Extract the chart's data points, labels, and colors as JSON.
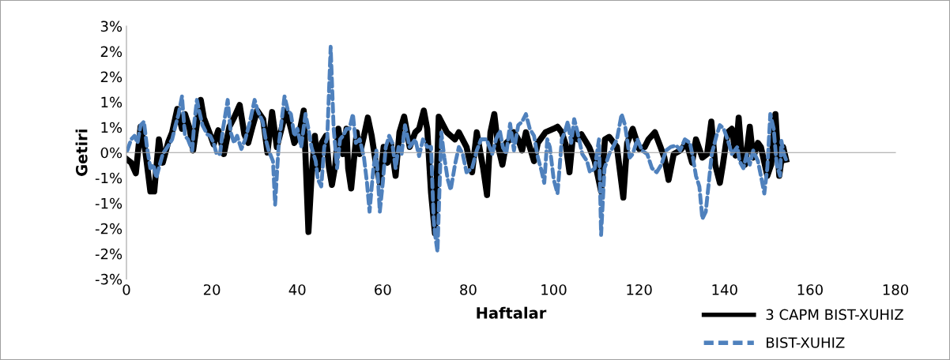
{
  "chart_data": {
    "type": "line",
    "xlabel": "Haftalar",
    "ylabel": "Getiri",
    "xlim": [
      0,
      180
    ],
    "xticks": [
      0,
      20,
      40,
      60,
      80,
      100,
      120,
      140,
      160,
      180
    ],
    "ylim": [
      -2.5,
      2.5
    ],
    "yticks": [
      {
        "value": -2.5,
        "label": "-3%"
      },
      {
        "value": -2,
        "label": "-2%"
      },
      {
        "value": -1.5,
        "label": "-2%"
      },
      {
        "value": -1,
        "label": "-1%"
      },
      {
        "value": -0.5,
        "label": "-1%"
      },
      {
        "value": 0,
        "label": "0%"
      },
      {
        "value": 0.5,
        "label": "1%"
      },
      {
        "value": 1,
        "label": "1%"
      },
      {
        "value": 1.5,
        "label": "2%"
      },
      {
        "value": 2,
        "label": "2%"
      },
      {
        "value": 2.5,
        "label": "3%"
      }
    ],
    "legend": "bottom right",
    "marker": "none",
    "series": [
      {
        "name": "3 CAPM BIST-XUHIZ",
        "color": "#000000",
        "line_style": "solid",
        "x": [
          0.2,
          1.1,
          2.2,
          3.3,
          4.4,
          5.6,
          6.5,
          7.6,
          8.5,
          9.8,
          10.7,
          11.9,
          13.0,
          13.7,
          14.8,
          15.6,
          16.7,
          17.4,
          18.1,
          19.4,
          20.4,
          21.5,
          22.8,
          24.1,
          25.2,
          26.5,
          27.6,
          28.5,
          29.6,
          30.6,
          32.0,
          33.0,
          34.1,
          35.2,
          36.3,
          37.4,
          38.5,
          39.3,
          40.4,
          41.5,
          42.6,
          43.3,
          44.1,
          44.8,
          45.7,
          46.7,
          47.4,
          48.1,
          48.9,
          49.6,
          50.0,
          50.7,
          51.5,
          51.9,
          52.6,
          53.3,
          53.9,
          54.6,
          55.6,
          56.5,
          57.4,
          58.3,
          59.3,
          60.2,
          61.1,
          61.9,
          63.0,
          63.9,
          65.0,
          66.3,
          67.6,
          68.5,
          69.6,
          70.4,
          71.3,
          72.2,
          73.1,
          75.0,
          76.9,
          77.8,
          79.6,
          80.9,
          82.0,
          82.6,
          83.5,
          84.4,
          85.2,
          86.1,
          87.0,
          88.0,
          88.9,
          89.8,
          90.7,
          91.7,
          92.6,
          93.5,
          94.4,
          95.4,
          96.3,
          98.1,
          100.0,
          100.9,
          101.9,
          102.8,
          103.7,
          104.6,
          105.6,
          106.5,
          108.3,
          109.6,
          111.1,
          112.0,
          113.0,
          113.9,
          114.8,
          116.3,
          117.2,
          118.5,
          120.0,
          121.3,
          122.2,
          123.7,
          125.0,
          125.9,
          126.9,
          128.1,
          129.6,
          131.1,
          132.4,
          133.3,
          134.8,
          135.9,
          136.9,
          137.8,
          138.9,
          139.6,
          140.7,
          141.7,
          142.6,
          143.3,
          144.1,
          144.8,
          145.9,
          146.7,
          147.8,
          148.5,
          150.0,
          150.9,
          151.9,
          152.8,
          153.7,
          154.4
        ],
        "values": [
          -0.14,
          -0.2,
          -0.41,
          0.51,
          0.04,
          -0.77,
          -0.77,
          0.26,
          -0.2,
          0.21,
          0.4,
          0.86,
          0.47,
          0.76,
          0.47,
          0.04,
          0.69,
          1.04,
          0.69,
          0.4,
          0.16,
          0.44,
          -0.03,
          0.51,
          0.69,
          0.94,
          0.36,
          0.19,
          0.54,
          0.83,
          0.66,
          0,
          0.8,
          0.11,
          0.47,
          0.83,
          0.47,
          0.19,
          0.36,
          0.83,
          -1.57,
          -0.5,
          0.33,
          -0.34,
          0.19,
          0.33,
          -0.29,
          -0.64,
          -0.24,
          0.47,
          0.26,
          -0.03,
          0.47,
          -0.31,
          -0.71,
          -0.1,
          0.4,
          -0.03,
          0.33,
          0.69,
          0.33,
          -0.17,
          -0.6,
          0.11,
          -0.2,
          0.19,
          -0.46,
          0.4,
          0.71,
          0.11,
          0.4,
          0.47,
          0.83,
          0.47,
          -0.8,
          -1.6,
          0.71,
          0.4,
          0.26,
          0.4,
          0.11,
          -0.39,
          0.4,
          0.11,
          -0.31,
          -0.84,
          0.4,
          0.76,
          0.11,
          -0.24,
          0.19,
          0.26,
          0.4,
          0.26,
          0.04,
          0.4,
          0.11,
          -0.17,
          0.19,
          0.4,
          0.47,
          0.51,
          0.4,
          0.16,
          -0.39,
          0.4,
          0.26,
          0.36,
          0.11,
          -0.17,
          -0.77,
          0.26,
          0.31,
          0.21,
          0.11,
          -0.89,
          0.19,
          0.47,
          0.07,
          0.11,
          0.26,
          0.4,
          0.11,
          -0.1,
          -0.54,
          -0.03,
          0.04,
          0.19,
          -0.2,
          0.26,
          -0.1,
          -0.03,
          0.61,
          -0.24,
          -0.6,
          -0.24,
          0.4,
          0.47,
          -0.06,
          0.69,
          -0.17,
          -0.24,
          0.51,
          -0.1,
          0.19,
          0.11,
          -0.46,
          -0.24,
          0.76,
          -0.46,
          0.11,
          -0.14
        ]
      },
      {
        "name": "BIST-XUHIZ",
        "color": "#4f81bd",
        "line_style": "dashed",
        "x": [
          0.2,
          1.1,
          1.9,
          2.6,
          3.3,
          4.1,
          4.8,
          5.6,
          6.3,
          7.0,
          7.8,
          8.5,
          9.6,
          10.7,
          11.5,
          12.2,
          13.0,
          13.7,
          14.4,
          15.4,
          15.9,
          16.5,
          17.0,
          17.8,
          18.9,
          19.6,
          20.4,
          21.1,
          21.9,
          22.6,
          23.7,
          24.4,
          25.2,
          25.9,
          26.9,
          27.8,
          28.9,
          30.0,
          30.7,
          31.9,
          32.6,
          33.3,
          34.3,
          34.8,
          35.6,
          36.3,
          37.0,
          37.8,
          38.5,
          39.3,
          40.0,
          40.9,
          41.9,
          42.6,
          43.3,
          44.3,
          44.8,
          45.6,
          46.3,
          47.0,
          47.8,
          48.5,
          49.3,
          50.0,
          50.7,
          51.5,
          52.2,
          53.0,
          53.7,
          54.6,
          55.6,
          56.3,
          56.9,
          57.8,
          58.5,
          59.3,
          60.0,
          60.7,
          61.5,
          62.2,
          63.0,
          63.7,
          64.4,
          65.2,
          66.3,
          67.6,
          68.5,
          69.4,
          70.4,
          71.3,
          71.9,
          72.2,
          72.8,
          73.7,
          74.4,
          75.2,
          75.9,
          76.9,
          77.8,
          78.7,
          79.6,
          80.9,
          82.0,
          83.0,
          84.3,
          85.6,
          86.5,
          87.4,
          88.1,
          88.9,
          89.8,
          90.7,
          91.7,
          92.6,
          93.5,
          94.4,
          95.4,
          96.3,
          97.0,
          97.8,
          98.5,
          99.1,
          100.0,
          100.9,
          101.9,
          102.6,
          103.3,
          104.1,
          104.8,
          105.6,
          106.7,
          107.8,
          108.5,
          109.6,
          110.6,
          111.1,
          111.9,
          113.0,
          113.9,
          114.8,
          115.9,
          116.7,
          117.8,
          118.5,
          119.6,
          120.7,
          121.9,
          123.0,
          124.1,
          125.2,
          126.3,
          127.4,
          128.7,
          129.6,
          130.7,
          131.9,
          132.6,
          133.3,
          134.1,
          134.8,
          135.6,
          136.3,
          137.0,
          138.1,
          138.9,
          139.8,
          140.7,
          141.7,
          143.0,
          143.5,
          144.4,
          145.2,
          145.9,
          146.7,
          147.8,
          148.5,
          149.3,
          150.0,
          150.7,
          151.5,
          152.2,
          153.0,
          153.3,
          153.9,
          154.4
        ],
        "values": [
          0.04,
          0.26,
          0.33,
          0.19,
          0.54,
          0.61,
          0.11,
          -0.31,
          -0.24,
          -0.5,
          -0.24,
          -0.03,
          0.11,
          0.26,
          0.54,
          0.76,
          1.11,
          0.33,
          0.26,
          0.04,
          0.61,
          1.04,
          0.83,
          0.54,
          0.36,
          0.33,
          0.19,
          -0.03,
          -0.03,
          0.47,
          1.04,
          0.4,
          0.19,
          0.33,
          0.07,
          0.26,
          0.61,
          1.04,
          0.83,
          0.61,
          0.26,
          0.04,
          -0.17,
          -1.03,
          0.11,
          0.61,
          1.11,
          0.83,
          0.76,
          0.33,
          0.47,
          0.11,
          0.76,
          0.47,
          0.11,
          -0.17,
          -0.53,
          -0.67,
          0.11,
          0.29,
          2.09,
          0.47,
          -0.31,
          0.26,
          0.33,
          0.47,
          0.47,
          0.76,
          0.19,
          0.26,
          -0.1,
          -0.6,
          -1.17,
          -0.31,
          0.04,
          -1.17,
          -0.6,
          0.11,
          0.33,
          0.19,
          -0.31,
          0.11,
          -0.03,
          0.54,
          0.11,
          0.26,
          -0.07,
          0.26,
          0.11,
          0.11,
          -1.31,
          -1.6,
          -1.96,
          0.4,
          -0.1,
          -0.53,
          -0.74,
          -0.24,
          0.11,
          -0.03,
          -0.39,
          -0.31,
          0.04,
          0.26,
          0.26,
          -0.03,
          0.26,
          0.43,
          0.11,
          -0.03,
          0.57,
          0.04,
          0.54,
          0.61,
          0.76,
          0.47,
          0.33,
          -0.1,
          -0.31,
          -0.6,
          0.26,
          0.11,
          -0.53,
          -0.81,
          0.26,
          0.4,
          0.61,
          0.19,
          0.66,
          0.4,
          -0.03,
          -0.17,
          -0.39,
          -0.31,
          0.26,
          -1.63,
          -0.31,
          -0.03,
          0.11,
          0.26,
          0.76,
          0.54,
          -0.1,
          -0.03,
          0.26,
          0.04,
          -0.03,
          -0.31,
          -0.39,
          -0.24,
          0.04,
          0.11,
          0.14,
          0.04,
          0.26,
          0.19,
          -0.1,
          -0.46,
          -0.67,
          -1.31,
          -1.17,
          -0.6,
          -0.03,
          0.33,
          0.54,
          0.47,
          0.26,
          -0.03,
          0.11,
          -0.17,
          -0.31,
          -0.03,
          -0.24,
          0.04,
          -0.17,
          -0.46,
          -0.81,
          -0.31,
          0.76,
          0.47,
          -0.24,
          -0.46,
          0.23,
          -0.03,
          -0.14
        ]
      }
    ]
  }
}
